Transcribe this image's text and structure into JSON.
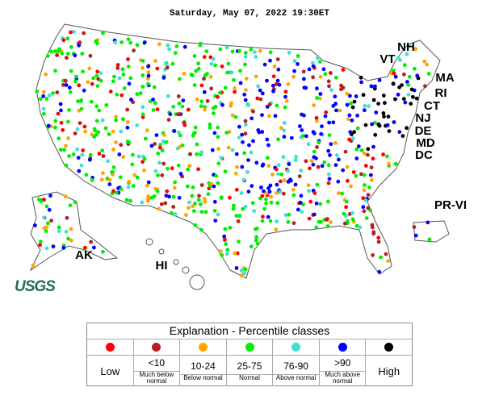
{
  "header": {
    "timestamp": "Saturday, May 07, 2022 19:30ET"
  },
  "map": {
    "labels": [
      "NH",
      "VT",
      "MA",
      "RI",
      "CT",
      "NJ",
      "DE",
      "MD",
      "DC",
      "PR-VI",
      "AK",
      "HI"
    ]
  },
  "logo": {
    "text": "USGS"
  },
  "legend": {
    "title": "Explanation - Percentile classes",
    "classes": [
      {
        "color": "#ff0000",
        "name": "Low"
      },
      {
        "color": "#b22222",
        "range": "<10",
        "description": "Much below normal"
      },
      {
        "color": "#ffa500",
        "range": "10-24",
        "description": "Below normal"
      },
      {
        "color": "#00ee00",
        "range": "25-75",
        "description": "Normal"
      },
      {
        "color": "#40e0d0",
        "range": "76-90",
        "description": "Above normal"
      },
      {
        "color": "#0000ff",
        "range": ">90",
        "description": "Much above normal"
      },
      {
        "color": "#000000",
        "name": "High"
      }
    ]
  }
}
